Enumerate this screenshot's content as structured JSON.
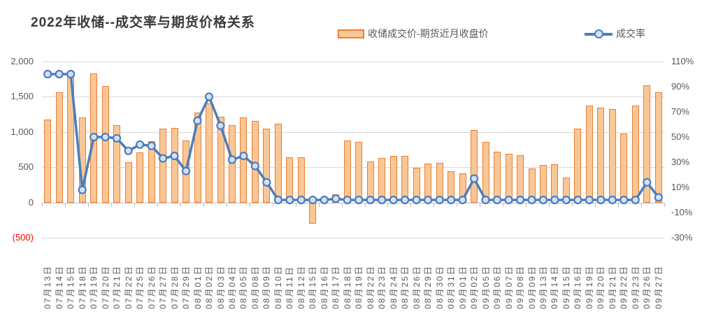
{
  "title": "2022年收储--成交率与期货价格关系",
  "legend": {
    "bar_label": "收储成交价-期货近月收盘价",
    "line_label": "成交率"
  },
  "colors": {
    "bar_fill": "#F9C795",
    "bar_border": "#ED7D31",
    "line": "#4A7EBD",
    "marker_fill": "#D7E0F2",
    "grid": "#D9D9D9",
    "axis": "#BFBFBF",
    "text": "#595959",
    "negative_label": "#FF0000"
  },
  "left_axis": {
    "labels": [
      "2,000",
      "1,500",
      "1,000",
      "500",
      "0",
      "(500)"
    ],
    "values": [
      2000,
      1500,
      1000,
      500,
      0,
      -500
    ]
  },
  "right_axis": {
    "labels": [
      "110%",
      "90%",
      "70%",
      "50%",
      "30%",
      "10%",
      "-10%",
      "-30%"
    ],
    "values": [
      110,
      90,
      70,
      50,
      30,
      10,
      -10,
      -30
    ]
  },
  "chart_data": {
    "type": "combo: bar + line",
    "title": "2022年收储--成交率与期货价格关系",
    "grid": true,
    "legend_position": "top",
    "left_axis_range": [
      -500,
      2000
    ],
    "right_axis_range": [
      -30,
      110
    ],
    "categories": [
      "07月13日",
      "07月14日",
      "07月15日",
      "07月18日",
      "07月19日",
      "07月20日",
      "07月21日",
      "07月22日",
      "07月25日",
      "07月26日",
      "07月27日",
      "07月28日",
      "07月29日",
      "08月01日",
      "08月02日",
      "08月03日",
      "08月04日",
      "08月05日",
      "08月08日",
      "08月09日",
      "08月10日",
      "08月11日",
      "08月12日",
      "08月15日",
      "08月16日",
      "08月17日",
      "08月18日",
      "08月19日",
      "08月22日",
      "08月23日",
      "08月24日",
      "08月25日",
      "08月26日",
      "08月29日",
      "08月30日",
      "08月31日",
      "09月01日",
      "09月02日",
      "09月05日",
      "09月06日",
      "09月07日",
      "09月08日",
      "09月09日",
      "09月13日",
      "09月14日",
      "09月15日",
      "09月16日",
      "09月19日",
      "09月20日",
      "09月21日",
      "09月22日",
      "09月23日",
      "09月26日",
      "09月27日"
    ],
    "series": [
      {
        "name": "收储成交价-期货近月收盘价",
        "type": "bar",
        "axis": "left",
        "values": [
          1180,
          1560,
          1790,
          1210,
          1835,
          1650,
          1095,
          570,
          710,
          870,
          1045,
          1055,
          875,
          1280,
          1410,
          1220,
          1100,
          1205,
          1155,
          1050,
          1120,
          640,
          645,
          -300,
          0,
          120,
          875,
          860,
          580,
          630,
          665,
          660,
          495,
          555,
          560,
          440,
          415,
          1025,
          860,
          725,
          695,
          670,
          485,
          535,
          540,
          355,
          1050,
          1375,
          1345,
          1330,
          975,
          1375,
          1665,
          1560
        ]
      },
      {
        "name": "成交率",
        "type": "line",
        "axis": "right",
        "unit": "%",
        "values": [
          100,
          100,
          100,
          8,
          50,
          50,
          49,
          39,
          44,
          43,
          33,
          35,
          23,
          63,
          82,
          59,
          32,
          35,
          27,
          14,
          0,
          0,
          0,
          0,
          0,
          1,
          0,
          0,
          0,
          0,
          0,
          0,
          0,
          0,
          0,
          0,
          0,
          17,
          0,
          0,
          0,
          0,
          0,
          0,
          0,
          0,
          0,
          0,
          0,
          0,
          0,
          0,
          14,
          2
        ]
      }
    ]
  }
}
